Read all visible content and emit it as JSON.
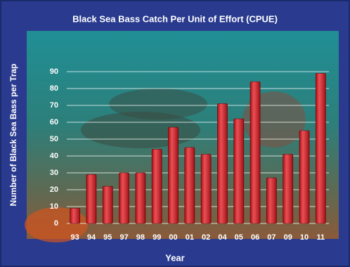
{
  "chart_data": {
    "type": "bar",
    "title": "Black Sea Bass Catch Per Unit of Effort (CPUE)",
    "x_label": "Year",
    "y_label": "Number of Black Sea Bass per Trap",
    "categories": [
      "93",
      "94",
      "95",
      "97",
      "98",
      "99",
      "00",
      "01",
      "02",
      "04",
      "05",
      "06",
      "07",
      "09",
      "10",
      "11"
    ],
    "values": [
      9,
      29,
      22,
      30,
      30,
      44,
      57,
      45,
      41,
      71,
      62,
      84,
      27,
      41,
      55,
      89
    ],
    "color": "#e3151c",
    "ylim": [
      0,
      90
    ],
    "yticks": [
      0,
      10,
      20,
      30,
      40,
      50,
      60,
      70,
      80,
      90
    ],
    "grid": true
  }
}
